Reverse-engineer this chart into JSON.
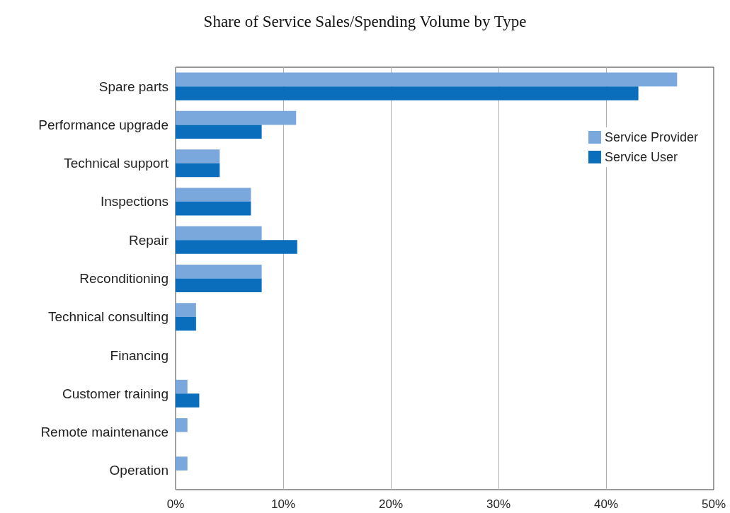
{
  "chart_data": {
    "type": "bar",
    "orientation": "horizontal",
    "title": "Share of Service Sales/Spending Volume by Type",
    "categories": [
      "Spare parts",
      "Performance upgrade",
      "Technical support",
      "Inspections",
      "Repair",
      "Reconditioning",
      "Technical consulting",
      "Financing",
      "Customer training",
      "Remote maintenance",
      "Operation"
    ],
    "series": [
      {
        "name": "Service Provider",
        "color": "#7aa7dc",
        "values": [
          46.6,
          11.2,
          4.1,
          7.0,
          8.0,
          8.0,
          1.9,
          0,
          1.1,
          1.1,
          1.1
        ]
      },
      {
        "name": "Service User",
        "color": "#0a6ebd",
        "values": [
          43.0,
          8.0,
          4.1,
          7.0,
          11.3,
          8.0,
          1.9,
          0,
          2.2,
          0,
          0
        ]
      }
    ],
    "xlim": [
      0,
      50
    ],
    "xticks": [
      {
        "value": 0,
        "label": "0%"
      },
      {
        "value": 10,
        "label": "10%"
      },
      {
        "value": 20,
        "label": "20%"
      },
      {
        "value": 30,
        "label": "30%"
      },
      {
        "value": 40,
        "label": "40%"
      },
      {
        "value": 50,
        "label": "50%"
      }
    ],
    "grid": "x",
    "legend": "top right"
  }
}
